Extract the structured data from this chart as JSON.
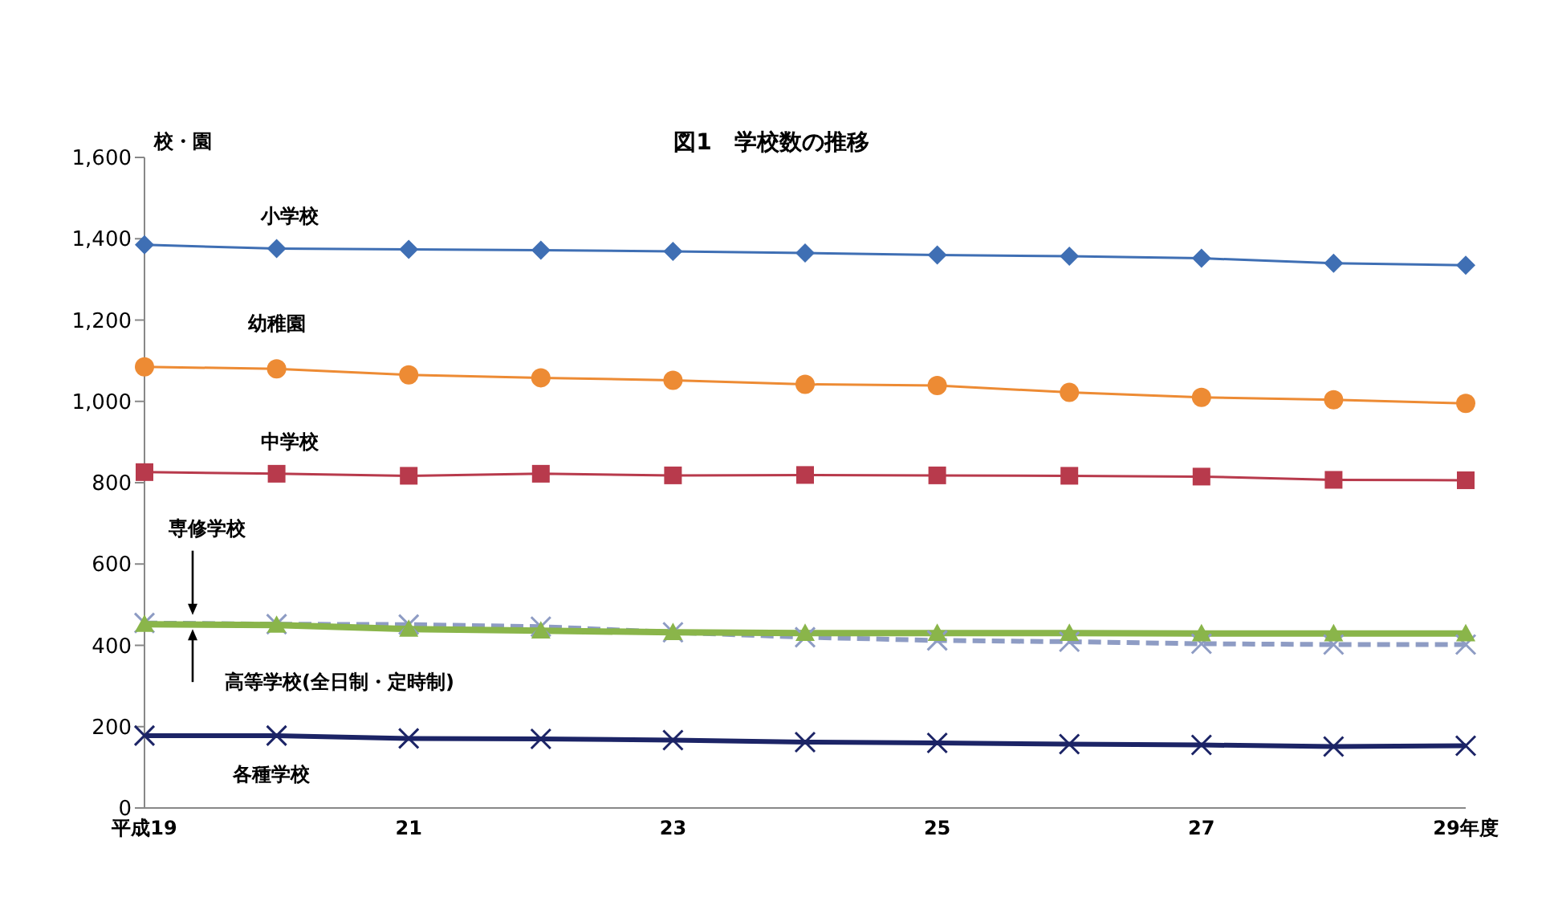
{
  "chart_data": {
    "type": "line",
    "title": "図1　学校数の推移",
    "ylabel": "校・園",
    "categories": [
      "平成19",
      null,
      "21",
      null,
      "23",
      null,
      "25",
      null,
      "27",
      null,
      "29年度"
    ],
    "ylim": [
      0,
      1600
    ],
    "yticks": [
      0,
      {
        "value": 200,
        "label": "200"
      },
      {
        "value": 400,
        "label": "400"
      },
      {
        "value": 600,
        "label": "600"
      },
      {
        "value": 800,
        "label": "800"
      },
      {
        "value": 1000,
        "label": "1,000"
      },
      {
        "value": 1200,
        "label": "1,200"
      },
      {
        "value": 1400,
        "label": "1,400"
      },
      {
        "value": 1600,
        "label": "1,600"
      }
    ],
    "grid": false,
    "legend": false,
    "series": [
      {
        "name": "小学校",
        "color": "#3f6fb4",
        "marker": "diamond",
        "line_style": "solid",
        "values": [
          1385,
          1376,
          1374,
          1372,
          1369,
          1365,
          1360,
          1357,
          1352,
          1340,
          1335
        ]
      },
      {
        "name": "幼稚園",
        "color": "#ed8b34",
        "marker": "circle",
        "line_style": "solid",
        "values": [
          1085,
          1080,
          1065,
          1058,
          1052,
          1042,
          1039,
          1022,
          1010,
          1004,
          995
        ]
      },
      {
        "name": "中学校",
        "color": "#b83a4c",
        "marker": "square",
        "line_style": "solid",
        "values": [
          826,
          822,
          817,
          822,
          818,
          819,
          818,
          817,
          815,
          807,
          806
        ]
      },
      {
        "name": "専修学校",
        "color": "#8e9cc4",
        "marker": "cross",
        "line_style": "dashed",
        "values": [
          455,
          452,
          451,
          446,
          432,
          420,
          412,
          409,
          404,
          402,
          402
        ]
      },
      {
        "name": "高等学校(全日制・定時制)",
        "color": "#8ab54a",
        "marker": "triangle",
        "line_style": "solid",
        "values": [
          452,
          450,
          440,
          436,
          432,
          430,
          430,
          430,
          429,
          429,
          429
        ]
      },
      {
        "name": "各種学校",
        "color": "#1c2466",
        "marker": "cross",
        "line_style": "solid",
        "values": [
          178,
          178,
          171,
          170,
          167,
          162,
          160,
          157,
          155,
          151,
          153
        ]
      }
    ]
  }
}
